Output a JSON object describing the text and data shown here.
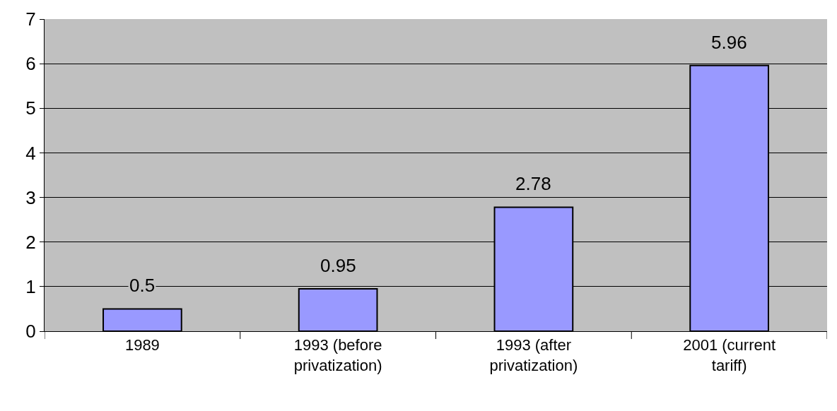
{
  "chart_data": {
    "type": "bar",
    "categories": [
      "1989",
      "1993 (before privatization)",
      "1993 (after privatization)",
      "2001 (current tariff)"
    ],
    "values": [
      0.5,
      0.95,
      2.78,
      5.96
    ],
    "color": "#9999ff",
    "ylim": [
      0,
      7
    ],
    "yticks": [
      0,
      1,
      2,
      3,
      4,
      5,
      6,
      7
    ],
    "grid": "y",
    "data_labels": true
  }
}
